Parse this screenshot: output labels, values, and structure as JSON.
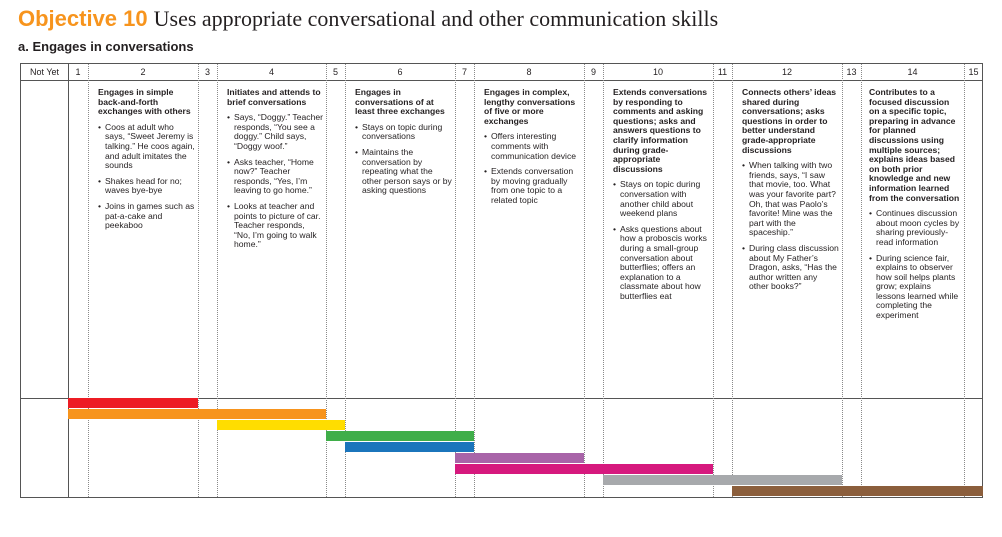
{
  "header": {
    "objective": "Objective 10",
    "objective_text": "Uses appropriate conversational and other communication skills",
    "subtitle": "a. Engages in conversations"
  },
  "columns": [
    "Not Yet",
    "1",
    "2",
    "3",
    "4",
    "5",
    "6",
    "7",
    "8",
    "9",
    "10",
    "11",
    "12",
    "13",
    "14",
    "15"
  ],
  "levels": [
    {
      "heading": "Engages in simple back-and-forth exchanges with others",
      "examples": [
        "Coos at adult who says, “Sweet Jeremy is talking.” He coos again, and adult imitates the sounds",
        "Shakes head for no; waves bye-bye",
        "Joins in games such as pat-a-cake and peekaboo"
      ]
    },
    {
      "heading": "Initiates and attends to brief conversations",
      "examples": [
        "Says, “Doggy.” Teacher responds, “You see a doggy.” Child says, “Doggy woof.”",
        "Asks teacher, “Home now?” Teacher responds, “Yes, I’m leaving to go home.”",
        "Looks at teacher and points to picture of car. Teacher responds, “No, I’m going to walk home.”"
      ]
    },
    {
      "heading": "Engages in conversations of at least three exchanges",
      "examples": [
        "Stays on topic during conversations",
        "Maintains the conversation by repeating what the other person says or by asking questions"
      ]
    },
    {
      "heading": "Engages in complex, lengthy conversations of five or more exchanges",
      "examples": [
        "Offers interesting comments with communication device",
        "Extends conversation by moving gradually from one topic to a related topic"
      ]
    },
    {
      "heading": "Extends conversations by responding to comments and asking questions; asks and answers questions to clarify information during grade-appropriate discussions",
      "examples": [
        "Stays on topic during conversation with another child about weekend plans",
        "Asks questions about how a proboscis works during a small-group conversation about butterflies; offers an explanation to a classmate about how butterflies eat"
      ]
    },
    {
      "heading": "Connects others’ ideas shared during conversations; asks questions in order to better understand grade-appropriate discussions",
      "examples": [
        "When talking with two friends, says, “I saw that movie, too. What was your favorite part? Oh, that was Paolo’s favorite! Mine was the part with the spaceship.”",
        "During class discussion about My Father’s Dragon, asks, “Has the author written any other books?”"
      ]
    },
    {
      "heading": "Contributes to a focused discussion on a specific topic, preparing in advance for planned discussions using multiple sources; explains ideas based on both prior knowledge and new information learned from the conversation",
      "examples": [
        "Continues discussion about moon cycles by sharing previously-read information",
        "During science fair, explains to observer how soil helps plants grow; explains lessons learned while completing the experiment"
      ]
    }
  ],
  "color_bands": [
    {
      "color": "#ed1c24",
      "from": 1,
      "to": 2
    },
    {
      "color": "#f7941d",
      "from": 1,
      "to": 4
    },
    {
      "color": "#ffdd00",
      "from": 4,
      "to": 5
    },
    {
      "color": "#3fae49",
      "from": 5,
      "to": 7
    },
    {
      "color": "#1b75bc",
      "from": 6,
      "to": 7
    },
    {
      "color": "#a864a8",
      "from": 7,
      "to": 8
    },
    {
      "color": "#d6197e",
      "from": 7,
      "to": 10
    },
    {
      "color": "#a7a9ac",
      "from": 10,
      "to": 12
    },
    {
      "color": "#8b5e3c",
      "from": 12,
      "to": 15
    }
  ]
}
